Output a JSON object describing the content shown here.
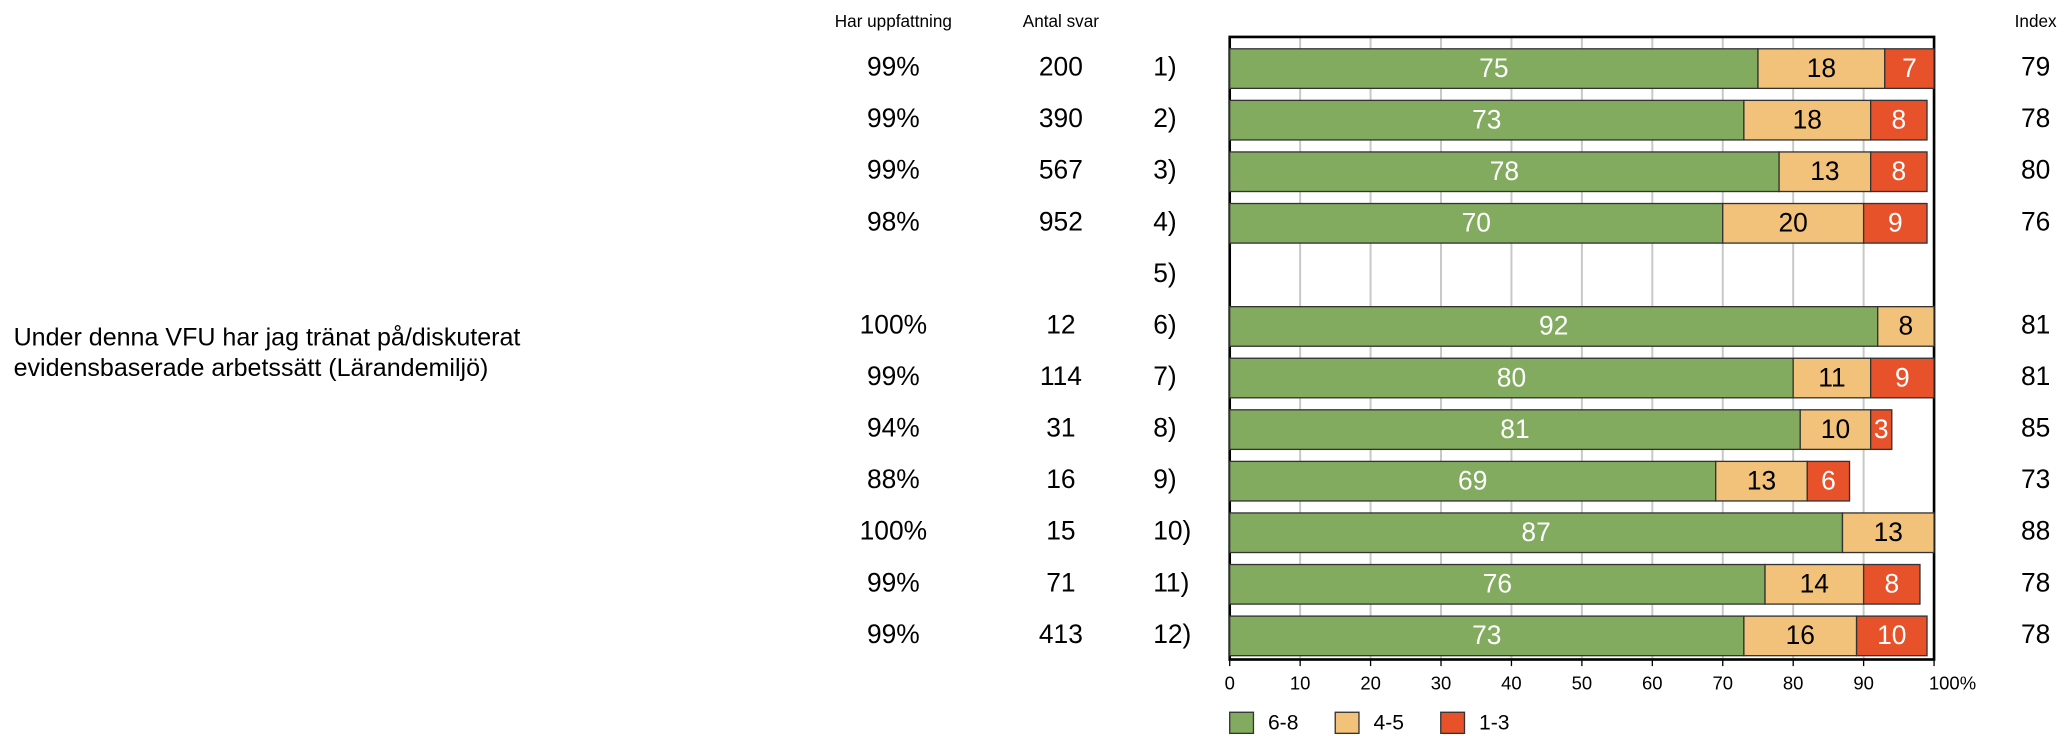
{
  "chart_data": {
    "type": "stacked-bar-horizontal",
    "question": [
      "Under denna VFU har jag tränat på/diskuterat",
      "evidensbaserade arbetssätt (Lärandemiljö)"
    ],
    "column_headers": {
      "har_uppfattning": "Har uppfattning",
      "antal_svar": "Antal svar",
      "index": "Index"
    },
    "categories": [
      "1)",
      "2)",
      "3)",
      "4)",
      "5)",
      "6)",
      "7)",
      "8)",
      "9)",
      "10)",
      "11)",
      "12)"
    ],
    "har_uppfattning": [
      "99%",
      "99%",
      "99%",
      "98%",
      null,
      "100%",
      "99%",
      "94%",
      "88%",
      "100%",
      "99%",
      "99%"
    ],
    "antal_svar": [
      200,
      390,
      567,
      952,
      null,
      12,
      114,
      31,
      16,
      15,
      71,
      413
    ],
    "index": [
      79,
      78,
      80,
      76,
      null,
      81,
      81,
      85,
      73,
      88,
      78,
      78
    ],
    "series": [
      {
        "name": "6-8",
        "color": "#82ab5f",
        "label_color": "#ffffff",
        "values": [
          75,
          73,
          78,
          70,
          null,
          92,
          80,
          81,
          69,
          87,
          76,
          73
        ]
      },
      {
        "name": "4-5",
        "color": "#f2c27a",
        "label_color": "#000000",
        "values": [
          18,
          18,
          13,
          20,
          null,
          8,
          11,
          10,
          13,
          13,
          14,
          16
        ]
      },
      {
        "name": "1-3",
        "color": "#e8522a",
        "label_color": "#ffffff",
        "values": [
          7,
          8,
          8,
          9,
          null,
          null,
          9,
          3,
          6,
          null,
          8,
          10
        ]
      }
    ],
    "xlim": [
      0,
      100
    ],
    "xticks": [
      0,
      10,
      20,
      30,
      40,
      50,
      60,
      70,
      80,
      90,
      {
        "value": 100,
        "label": "100%"
      }
    ],
    "grid": true
  }
}
